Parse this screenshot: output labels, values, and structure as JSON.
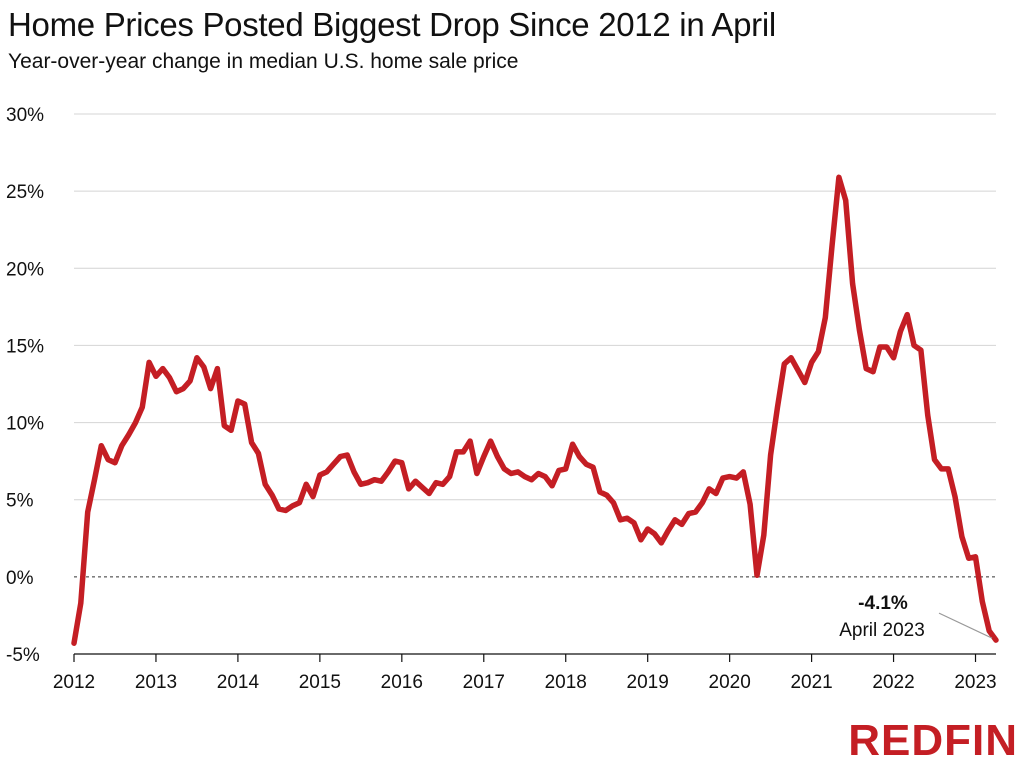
{
  "brand": {
    "name": "REDFIN",
    "color": "#c41e24"
  },
  "chart_data": {
    "type": "line",
    "title": "Home Prices Posted Biggest Drop Since 2012 in April",
    "subtitle": "Year-over-year change in median U.S. home sale price",
    "xlabel": "",
    "ylabel": "",
    "ylim": [
      -5,
      30
    ],
    "xlim": [
      2012,
      2023.25
    ],
    "y_ticks": [
      -5,
      0,
      5,
      10,
      15,
      20,
      25,
      30
    ],
    "y_tick_labels": [
      "-5%",
      "0%",
      "5%",
      "10%",
      "15%",
      "20%",
      "25%",
      "30%"
    ],
    "x_ticks": [
      2012,
      2013,
      2014,
      2015,
      2016,
      2017,
      2018,
      2019,
      2020,
      2021,
      2022,
      2023
    ],
    "x_tick_labels": [
      "2012",
      "2013",
      "2014",
      "2015",
      "2016",
      "2017",
      "2018",
      "2019",
      "2020",
      "2021",
      "2022",
      "2023"
    ],
    "grid": true,
    "zero_line": "dashed",
    "line_color": "#c41e24",
    "series": [
      {
        "name": "Median sale price YoY change",
        "start_year": 2012,
        "start_month": 1,
        "values": [
          -4.3,
          -1.7,
          4.2,
          6.3,
          8.5,
          7.6,
          7.4,
          8.5,
          9.2,
          10.0,
          11.0,
          13.9,
          13.0,
          13.5,
          12.9,
          12.0,
          12.2,
          12.7,
          14.2,
          13.6,
          12.2,
          13.5,
          9.8,
          9.5,
          11.4,
          11.2,
          8.7,
          8.0,
          6.0,
          5.3,
          4.4,
          4.3,
          4.6,
          4.8,
          6.0,
          5.2,
          6.6,
          6.8,
          7.3,
          7.8,
          7.9,
          6.8,
          6.0,
          6.1,
          6.3,
          6.2,
          6.8,
          7.5,
          7.4,
          5.7,
          6.2,
          5.8,
          5.4,
          6.1,
          6.0,
          6.5,
          8.1,
          8.1,
          8.8,
          6.7,
          7.8,
          8.8,
          7.8,
          7.0,
          6.7,
          6.8,
          6.5,
          6.3,
          6.7,
          6.5,
          5.9,
          6.9,
          7.0,
          8.6,
          7.8,
          7.3,
          7.1,
          5.5,
          5.3,
          4.8,
          3.7,
          3.8,
          3.5,
          2.4,
          3.1,
          2.8,
          2.2,
          3.0,
          3.7,
          3.4,
          4.1,
          4.2,
          4.8,
          5.7,
          5.4,
          6.4,
          6.5,
          6.4,
          6.8,
          4.7,
          0.1,
          2.7,
          7.9,
          11.0,
          13.8,
          14.2,
          13.4,
          12.6,
          13.9,
          14.6,
          16.8,
          21.5,
          25.9,
          24.4,
          19.0,
          16.0,
          13.5,
          13.3,
          14.9,
          14.9,
          14.2,
          15.9,
          17.0,
          15.0,
          14.7,
          10.5,
          7.6,
          7.0,
          7.0,
          5.2,
          2.6,
          1.2,
          1.3,
          -1.6,
          -3.5,
          -4.1
        ]
      }
    ],
    "annotation": {
      "value": "-4.1%",
      "label": "April 2023",
      "x": 2023.25,
      "y": -4.1
    }
  }
}
